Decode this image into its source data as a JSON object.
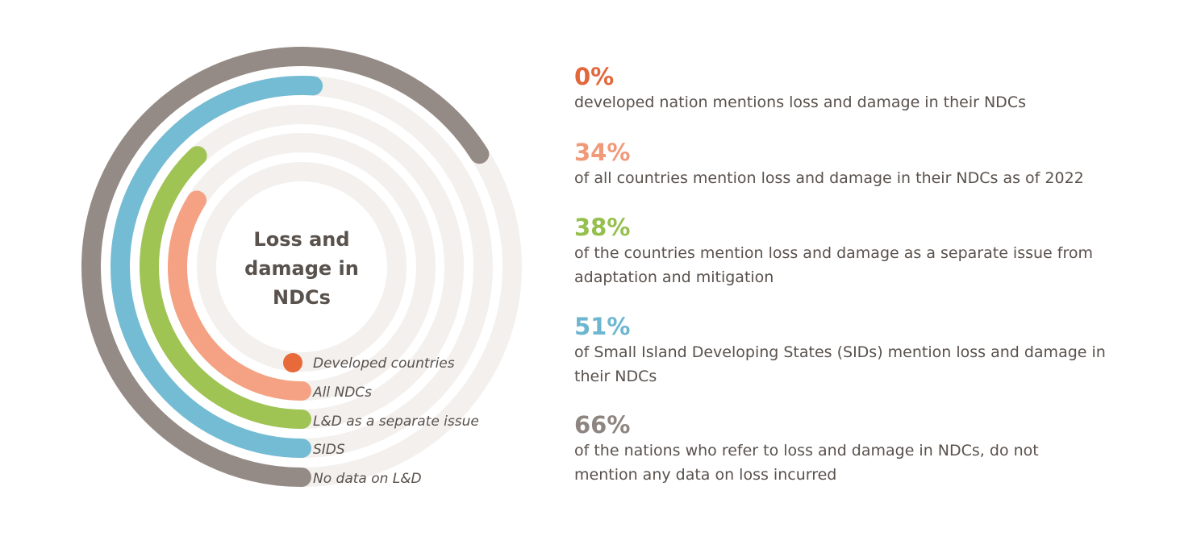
{
  "chart_data": {
    "type": "radial-bar",
    "title": "Loss and damage in NDCs",
    "title_lines": [
      "Loss and",
      "damage in",
      "NDCs"
    ],
    "series": [
      {
        "name": "Developed countries",
        "value": 0,
        "color": "#e8693a"
      },
      {
        "name": "All NDCs",
        "value": 34,
        "color": "#f4a283"
      },
      {
        "name": "L&D as a separate issue",
        "value": 38,
        "color": "#9fc454"
      },
      {
        "name": "SIDS",
        "value": 51,
        "color": "#74bcd4"
      },
      {
        "name": "No data on L&D",
        "value": 66,
        "color": "#958b86"
      }
    ],
    "unit": "%",
    "track_color": "#f3f0ed"
  },
  "stats": [
    {
      "value": "0%",
      "description": "developed nation mentions loss and damage in their NDCs",
      "color": "#e2683b"
    },
    {
      "value": "34%",
      "description": "of all countries mention loss and damage in their NDCs as of 2022",
      "color": "#f09a7a"
    },
    {
      "value": "38%",
      "description": "of the countries mention loss and damage as a separate issue from adaptation and mitigation",
      "color": "#95c04e"
    },
    {
      "value": "51%",
      "description": "of Small Island Developing States (SIDs) mention loss and damage in their NDCs",
      "color": "#6db6d0"
    },
    {
      "value": "66%",
      "description": "of the nations who refer to loss and damage in NDCs, do not mention any data on loss incurred",
      "color": "#8f8580"
    }
  ]
}
